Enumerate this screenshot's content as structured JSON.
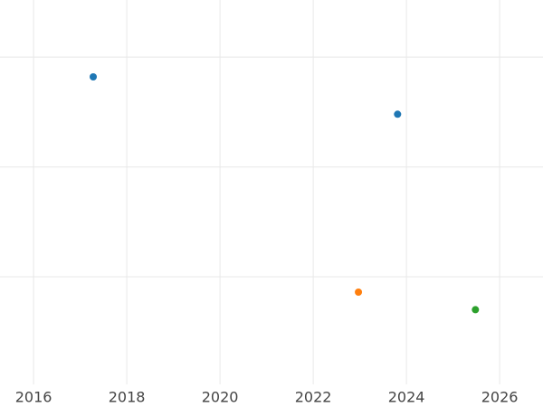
{
  "chart_data": {
    "type": "scatter",
    "series": [
      {
        "color": "#1f77b4",
        "x": [
          2017.28,
          2023.81
        ],
        "values": [
          2.82,
          2.48
        ]
      },
      {
        "color": "#ff7f0e",
        "x": [
          2022.97
        ],
        "values": [
          0.86
        ]
      },
      {
        "color": "#2ca02c",
        "x": [
          2025.48
        ],
        "values": [
          0.7
        ]
      }
    ],
    "xlim": [
      2015.28,
      2026.93
    ],
    "xticks": [
      2016,
      2018,
      2020,
      2022,
      2024,
      2026
    ],
    "ylim": [
      0.02,
      3.52
    ],
    "ygridlines": [
      1,
      2,
      3
    ],
    "grid": true
  }
}
